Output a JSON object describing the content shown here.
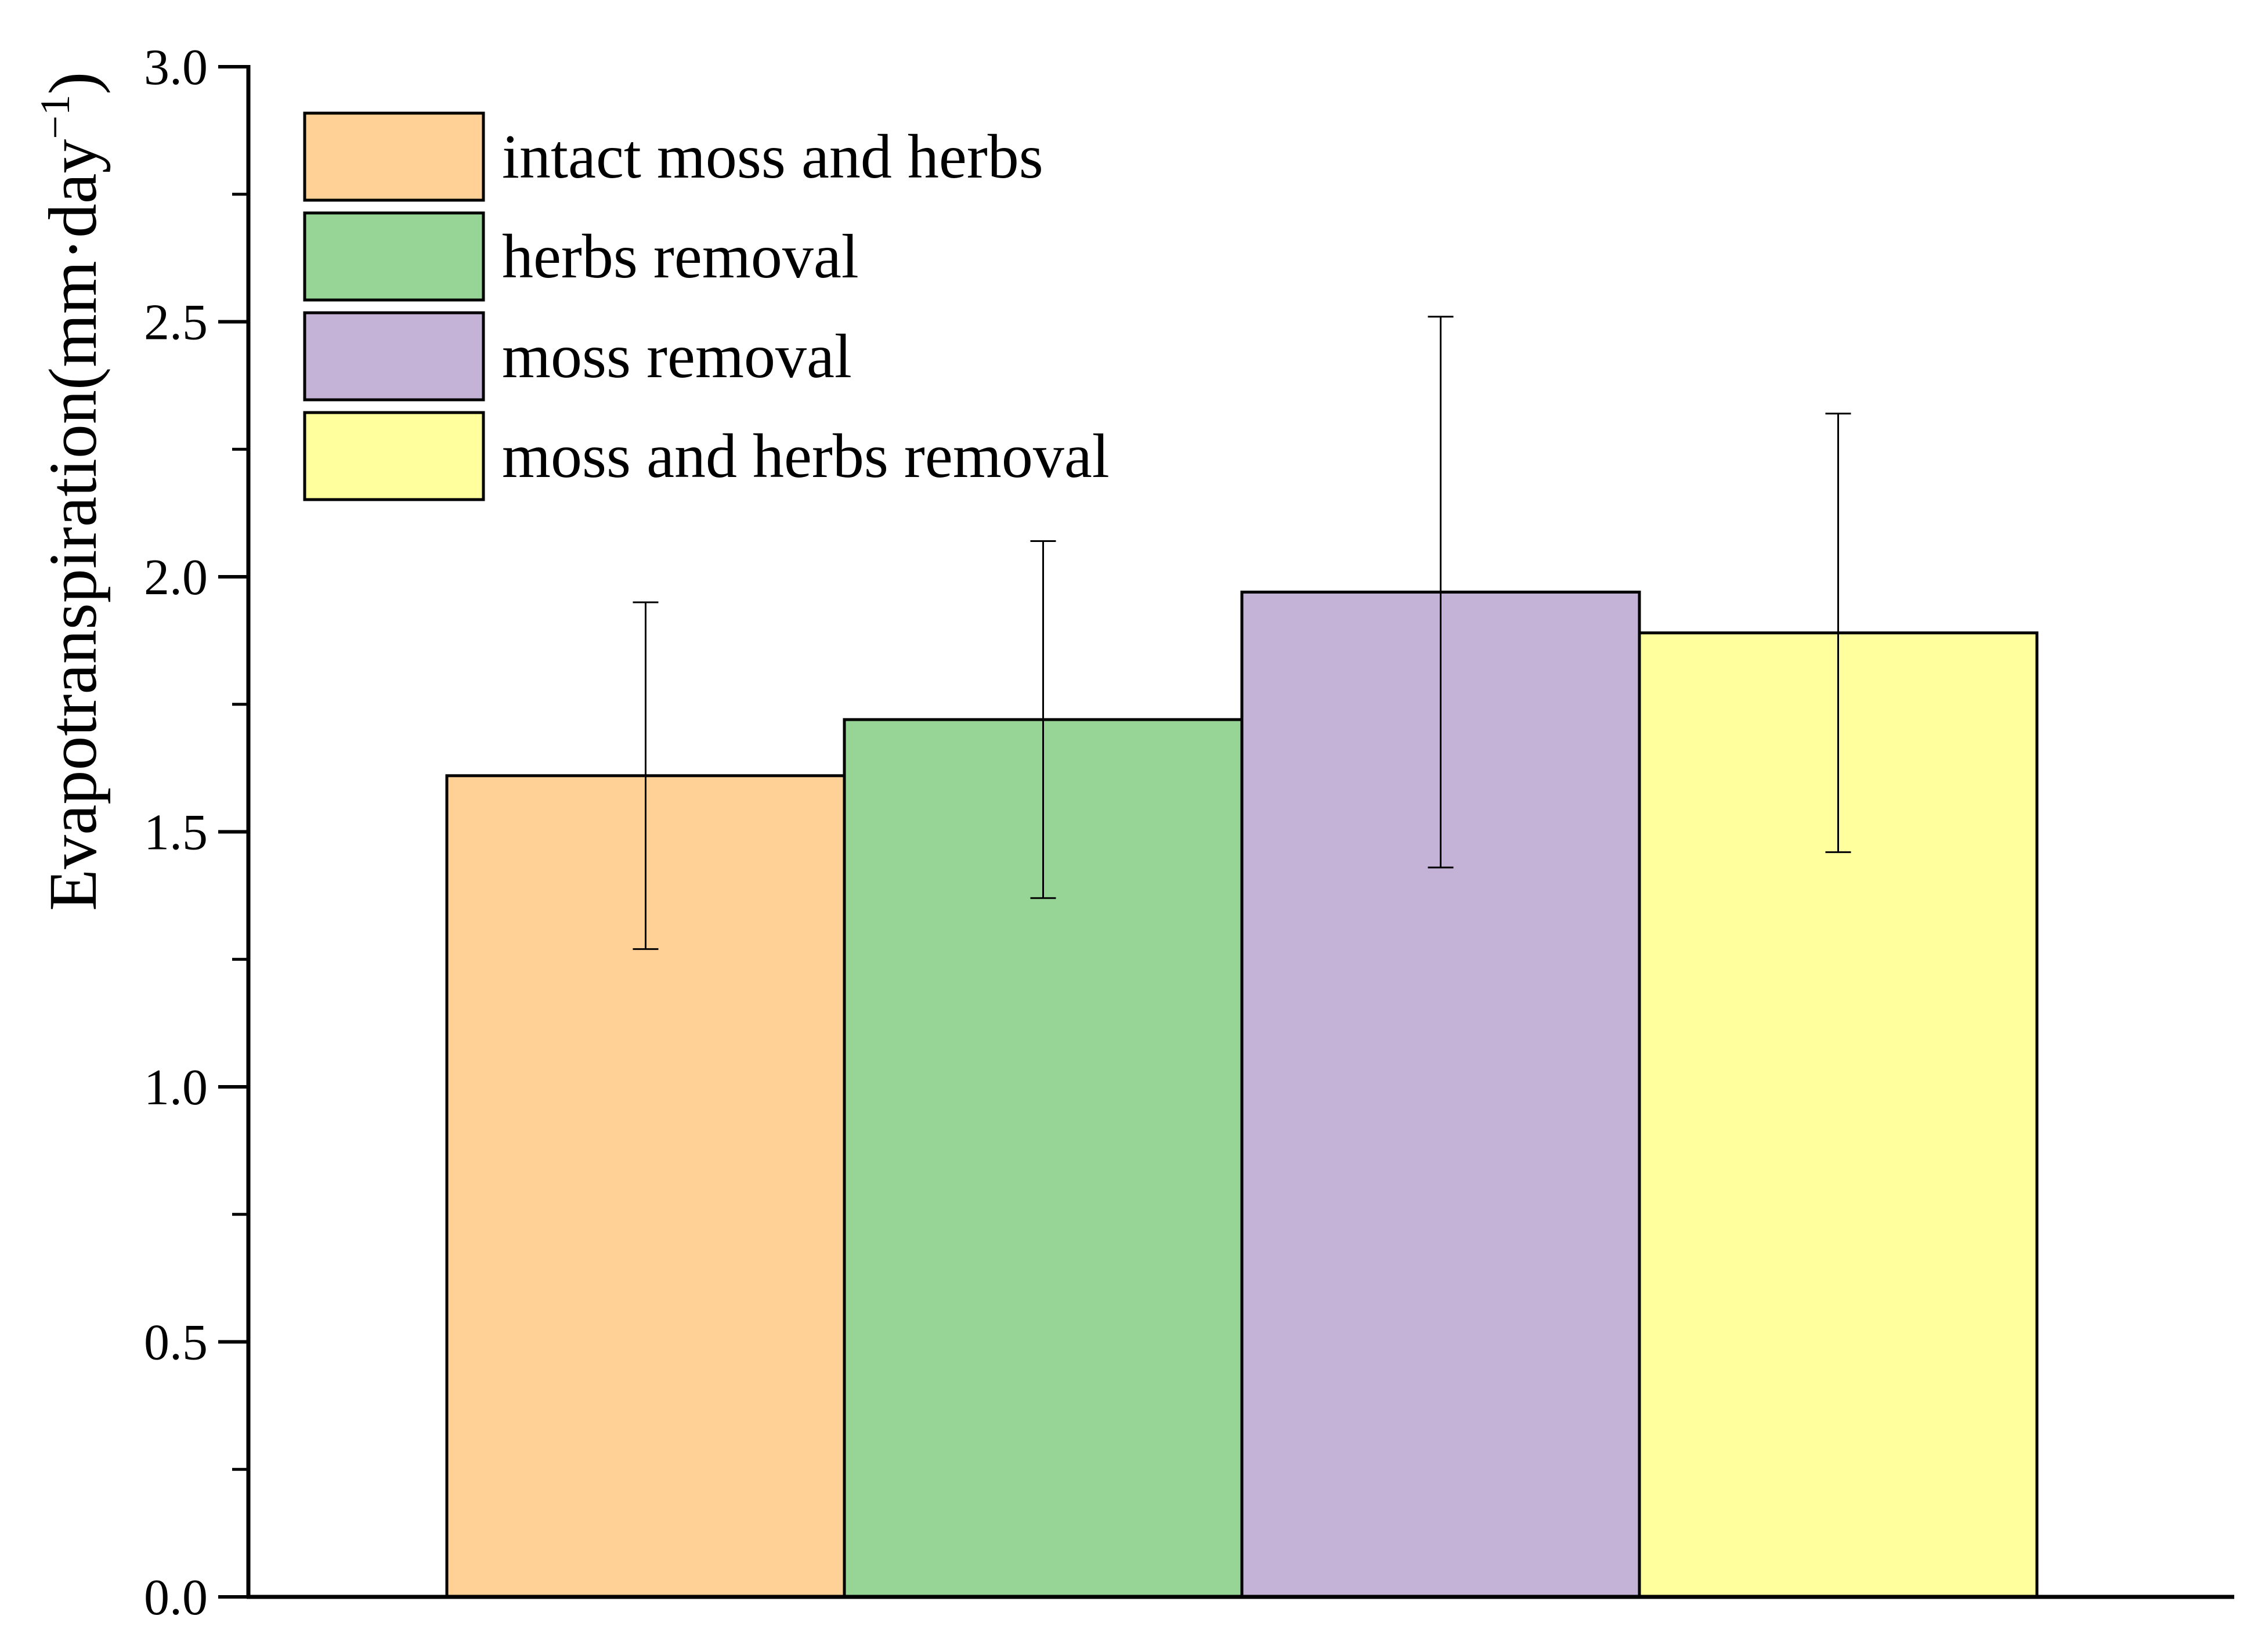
{
  "chart_data": {
    "type": "bar",
    "title": "",
    "xlabel": "",
    "ylabel": {
      "main": "Evapotranspiration(mm·day",
      "sup": "−1",
      "close": ")"
    },
    "ylim": [
      0,
      3.0
    ],
    "yticks": [
      "0.0",
      "0.5",
      "1.0",
      "1.5",
      "2.0",
      "2.5",
      "3.0"
    ],
    "legend_position": "top-left",
    "series": [
      {
        "name": "intact moss and herbs",
        "value": 1.61,
        "error_low": 1.27,
        "error_high": 1.95,
        "color": "#ffd196"
      },
      {
        "name": "herbs removal",
        "value": 1.72,
        "error_low": 1.37,
        "error_high": 2.07,
        "color": "#97d597"
      },
      {
        "name": "moss removal",
        "value": 1.97,
        "error_low": 1.43,
        "error_high": 2.51,
        "color": "#c4b3d7"
      },
      {
        "name": "moss and herbs removal",
        "value": 1.89,
        "error_low": 1.46,
        "error_high": 2.32,
        "color": "#ffff9e"
      }
    ]
  }
}
